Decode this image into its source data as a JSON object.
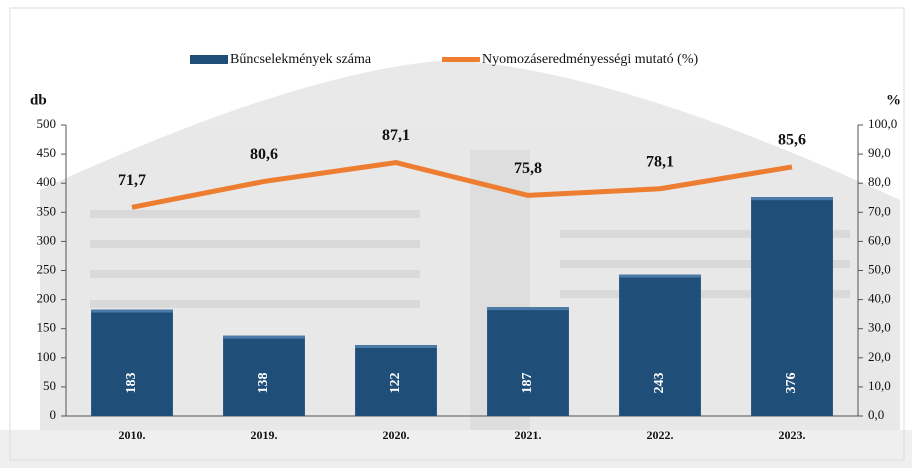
{
  "chart_data": {
    "type": "combo",
    "y_label": "db",
    "y2_label": "%",
    "categories": [
      "2010.",
      "2019.",
      "2020.",
      "2021.",
      "2022.",
      "2023."
    ],
    "series": [
      {
        "name": "Bűncselekmények száma",
        "type": "bar",
        "color": "#1f4e79",
        "values": [
          183,
          138,
          122,
          187,
          243,
          376
        ]
      },
      {
        "name": "Nyomozáseredményességi mutató (%)",
        "type": "line",
        "axis": "y2",
        "color": "#ed7d31",
        "values": [
          71.7,
          80.6,
          87.1,
          75.8,
          78.1,
          85.6
        ],
        "value_labels": [
          "71,7",
          "80,6",
          "87,1",
          "75,8",
          "78,1",
          "85,6"
        ]
      }
    ],
    "ylim": [
      0,
      500
    ],
    "yticks": [
      0,
      50,
      100,
      150,
      200,
      250,
      300,
      350,
      400,
      450,
      500
    ],
    "y2lim": [
      0,
      100
    ],
    "y2ticks": [
      {
        "value": 0,
        "label": "0,0"
      },
      {
        "value": 10,
        "label": "10,0"
      },
      {
        "value": 20,
        "label": "20,0"
      },
      {
        "value": 30,
        "label": "30,0"
      },
      {
        "value": 40,
        "label": "40,0"
      },
      {
        "value": 50,
        "label": "50,0"
      },
      {
        "value": 60,
        "label": "60,0"
      },
      {
        "value": 70,
        "label": "70,0"
      },
      {
        "value": 80,
        "label": "80,0"
      },
      {
        "value": 90,
        "label": "90,0"
      },
      {
        "value": 100,
        "label": "100,0"
      }
    ]
  }
}
